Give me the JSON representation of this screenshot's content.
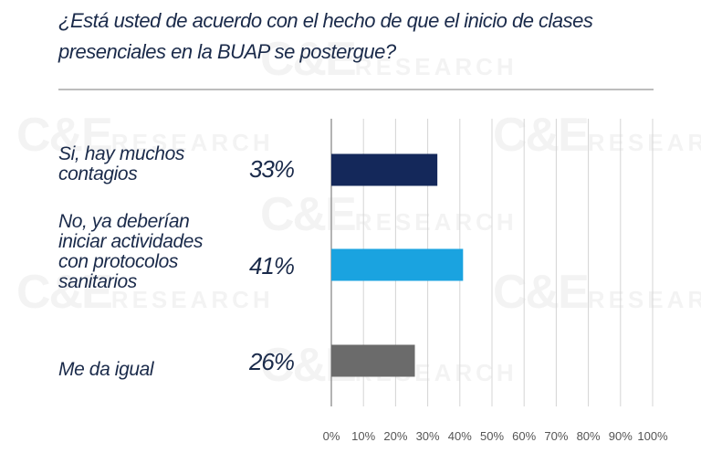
{
  "title": "¿Está usted de acuerdo con el hecho de que el inicio de clases presenciales en la BUAP se postergue?",
  "watermark": "C&E RESEARCH",
  "chart_data": {
    "type": "bar",
    "orientation": "horizontal",
    "categories": [
      "Si, hay muchos contagios",
      "No, ya deberían  iniciar actividades con protocolos sanitarios",
      "Me da igual"
    ],
    "values": [
      33,
      41,
      26
    ],
    "value_labels": [
      "33%",
      "41%",
      "26%"
    ],
    "colors": [
      "#14285a",
      "#1aa3e0",
      "#6b6b6b"
    ],
    "xlim": [
      0,
      100
    ],
    "xticks": [
      "0%",
      "10%",
      "20%",
      "30%",
      "40%",
      "50%",
      "60%",
      "70%",
      "80%",
      "90%",
      "100%"
    ],
    "grid": "vertical"
  }
}
